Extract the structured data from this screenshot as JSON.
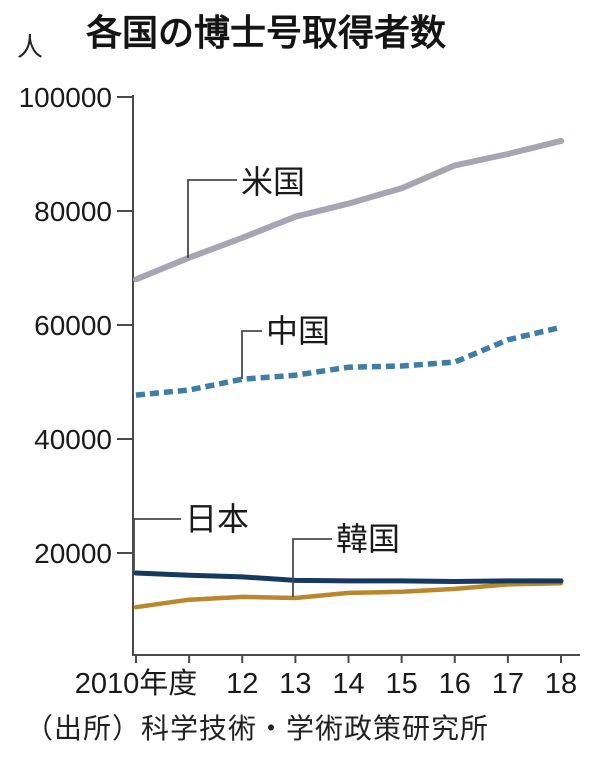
{
  "page": {
    "unit_label": "人",
    "title": "各国の博士号取得者数",
    "source_note": "（出所）科学技術・学術政策研究所"
  },
  "chart_data": {
    "type": "line",
    "title": "各国の博士号取得者数",
    "unit": "人",
    "source": "（出所）科学技術・学術政策研究所",
    "x": [
      2010,
      2011,
      2012,
      2013,
      2014,
      2015,
      2016,
      2017,
      2018
    ],
    "x_tick_labels": [
      "2010年度",
      "",
      "12",
      "13",
      "14",
      "15",
      "16",
      "17",
      "18"
    ],
    "y_ticks": [
      100000,
      80000,
      60000,
      40000,
      20000
    ],
    "y_tick_labels": [
      "100000",
      "80000",
      "60000",
      "40000",
      "20000"
    ],
    "ylim": [
      0,
      100000
    ],
    "grid": false,
    "legend": "direct labels with connector lines",
    "axis_color": "#4a4a4a",
    "series": [
      {
        "id": "us",
        "name": "米国",
        "color": "#a8a4b1",
        "style": "solid",
        "values": [
          68000,
          71800,
          75300,
          79000,
          81300,
          84000,
          88000,
          90000,
          92300
        ]
      },
      {
        "id": "china",
        "name": "中国",
        "color": "#3f7ca6",
        "style": "dashed",
        "values": [
          47700,
          48600,
          50500,
          51200,
          52600,
          52800,
          53500,
          57400,
          59600
        ]
      },
      {
        "id": "japan",
        "name": "日本",
        "color": "#16395f",
        "style": "solid",
        "values": [
          16500,
          16100,
          15800,
          15200,
          15100,
          15100,
          15000,
          15100,
          15100
        ]
      },
      {
        "id": "korea",
        "name": "韓国",
        "color": "#b9872e",
        "style": "solid",
        "values": [
          10500,
          11800,
          12300,
          12100,
          13000,
          13200,
          13700,
          14500,
          14700
        ]
      }
    ]
  }
}
